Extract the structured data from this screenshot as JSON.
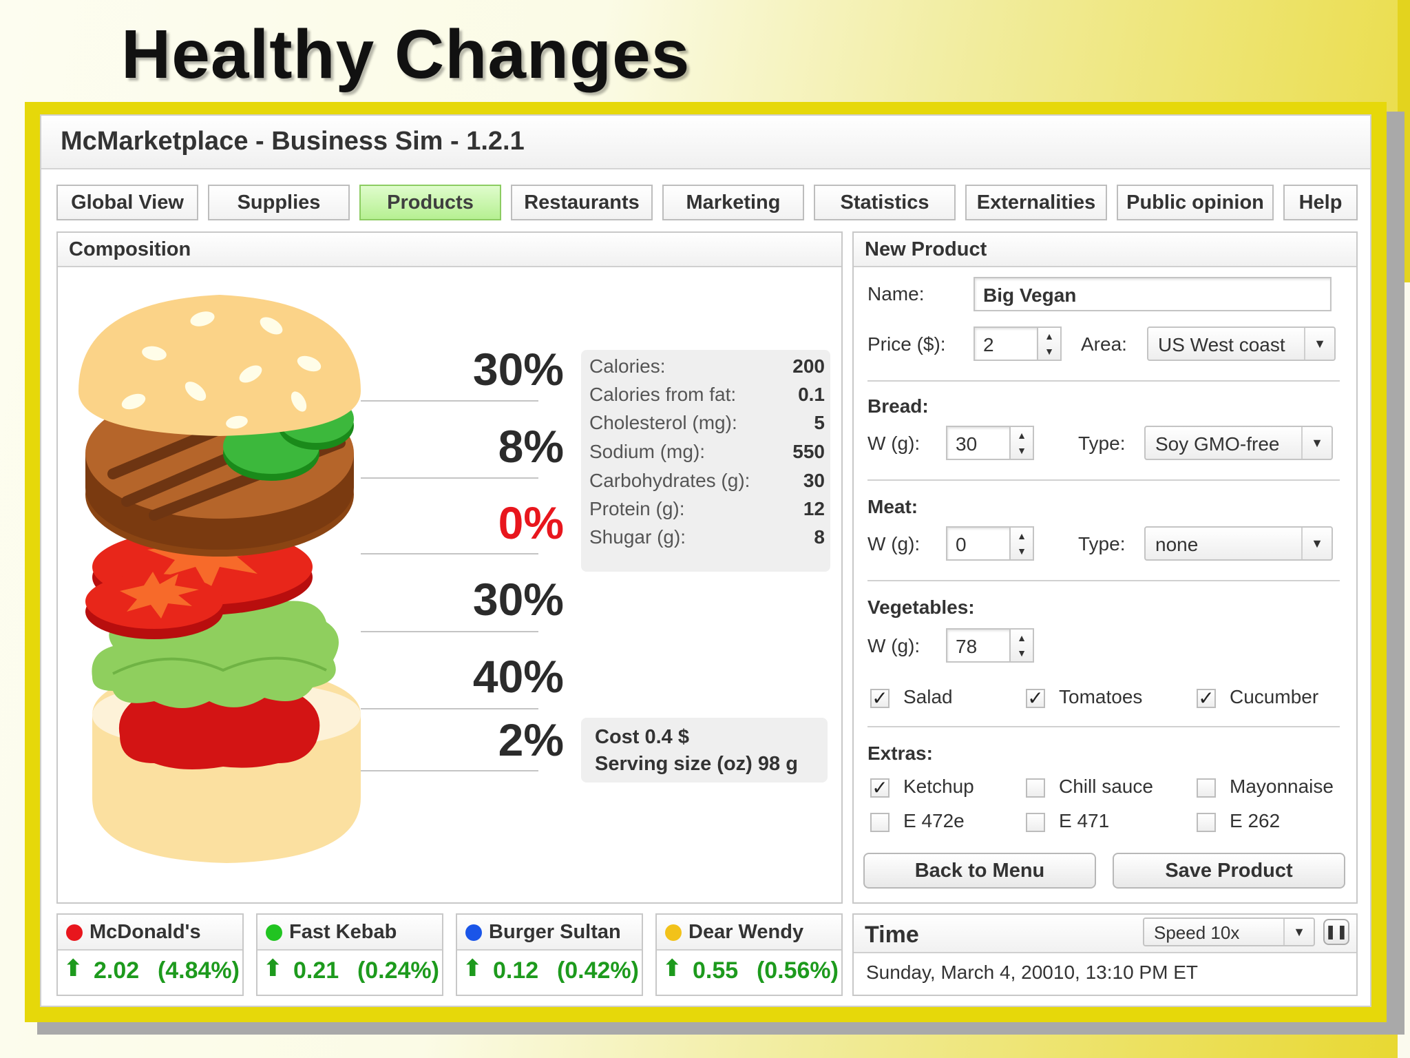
{
  "slide_title": "Healthy Changes",
  "window_title": "McMarketplace - Business Sim - 1.2.1",
  "tabs": [
    {
      "label": "Global View",
      "active": false
    },
    {
      "label": "Supplies",
      "active": false
    },
    {
      "label": "Products",
      "active": true
    },
    {
      "label": "Restaurants",
      "active": false
    },
    {
      "label": "Marketing",
      "active": false
    },
    {
      "label": "Statistics",
      "active": false
    },
    {
      "label": "Externalities",
      "active": false
    },
    {
      "label": "Public opinion",
      "active": false
    },
    {
      "label": "Help",
      "active": false
    }
  ],
  "composition": {
    "title": "Composition",
    "percentages": [
      {
        "label": "30%",
        "highlight": false
      },
      {
        "label": "8%",
        "highlight": false
      },
      {
        "label": "0%",
        "highlight": true
      },
      {
        "label": "30%",
        "highlight": false
      },
      {
        "label": "40%",
        "highlight": false
      },
      {
        "label": "2%",
        "highlight": false
      }
    ],
    "nutrition": [
      {
        "label": "Calories:",
        "value": "200"
      },
      {
        "label": "Calories from fat:",
        "value": "0.1"
      },
      {
        "label": "Cholesterol (mg):",
        "value": "5"
      },
      {
        "label": "Sodium (mg):",
        "value": "550"
      },
      {
        "label": "Carbohydrates (g):",
        "value": "30"
      },
      {
        "label": "Protein (g):",
        "value": "12"
      },
      {
        "label": "Shugar (g):",
        "value": "8"
      }
    ],
    "cost": "Cost 0.4 $",
    "serving": "Serving size (oz) 98 g"
  },
  "new_product": {
    "title": "New Product",
    "name_label": "Name:",
    "name_value": "Big Vegan",
    "price_label": "Price ($):",
    "price_value": "2",
    "area_label": "Area:",
    "area_value": "US West coast",
    "bread_label": "Bread:",
    "bread_w_label": "W (g):",
    "bread_w": "30",
    "bread_type_label": "Type:",
    "bread_type": "Soy GMO-free",
    "meat_label": "Meat:",
    "meat_w_label": "W (g):",
    "meat_w": "0",
    "meat_type_label": "Type:",
    "meat_type": "none",
    "veg_label": "Vegetables:",
    "veg_w_label": "W (g):",
    "veg_w": "78",
    "vegetables": [
      {
        "label": "Salad",
        "checked": true
      },
      {
        "label": "Tomatoes",
        "checked": true
      },
      {
        "label": "Cucumber",
        "checked": true
      }
    ],
    "extras_label": "Extras:",
    "extras": [
      {
        "label": "Ketchup",
        "checked": true
      },
      {
        "label": "Chill sauce",
        "checked": false
      },
      {
        "label": "Mayonnaise",
        "checked": false
      },
      {
        "label": "E 472e",
        "checked": false
      },
      {
        "label": "E 471",
        "checked": false
      },
      {
        "label": "E 262",
        "checked": false
      }
    ],
    "back_button": "Back to Menu",
    "save_button": "Save Product"
  },
  "competitors": [
    {
      "name": "McDonald's",
      "color": "#e8161d",
      "value": "2.02",
      "change": "(4.84%)"
    },
    {
      "name": "Fast Kebab",
      "color": "#21c421",
      "value": "0.21",
      "change": "(0.24%)"
    },
    {
      "name": "Burger Sultan",
      "color": "#1a55e8",
      "value": "0.12",
      "change": "(0.42%)"
    },
    {
      "name": "Dear Wendy",
      "color": "#f2c21a",
      "value": "0.55",
      "change": "(0.56%)"
    }
  ],
  "time": {
    "title": "Time",
    "speed": "Speed 10x",
    "datetime": "Sunday, March 4, 20010, 13:10 PM ET"
  },
  "colors": {
    "frame": "#e6d80a",
    "active_tab": "#b6f092",
    "up": "#1d9a1d",
    "zero_pct": "#e8161d"
  }
}
